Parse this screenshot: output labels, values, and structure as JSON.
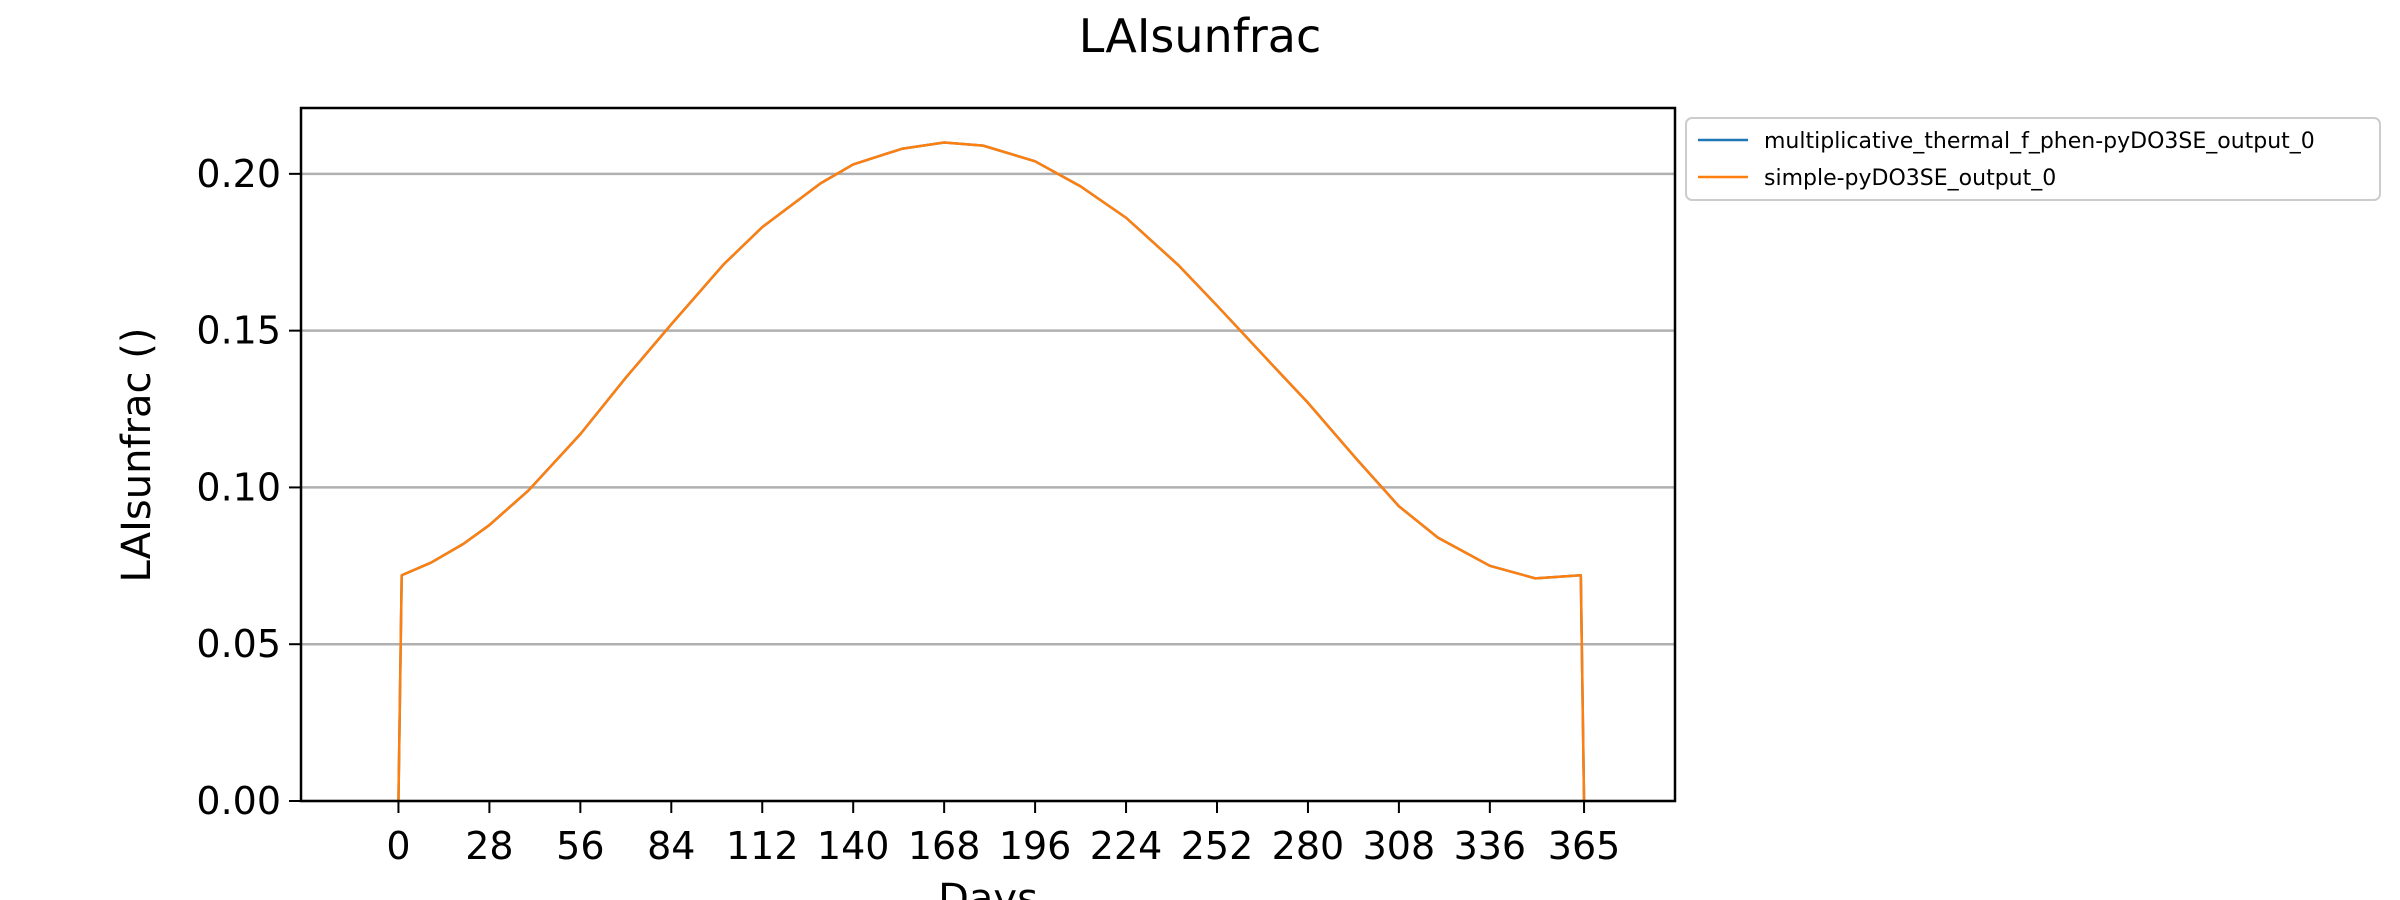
{
  "chart_data": {
    "type": "line",
    "title": "LAIsunfrac",
    "xlabel": "Days",
    "ylabel": "LAIsunfrac ()",
    "xlim": [
      -30,
      393
    ],
    "ylim": [
      0,
      0.221
    ],
    "xticks": [
      0,
      28,
      56,
      84,
      112,
      140,
      168,
      196,
      224,
      252,
      280,
      308,
      336,
      365
    ],
    "yticks": [
      0.0,
      0.05,
      0.1,
      0.15,
      0.2
    ],
    "ytick_labels": [
      "0.00",
      "0.05",
      "0.10",
      "0.15",
      "0.20"
    ],
    "grid": "horizontal",
    "legend_position": "outside-top-right",
    "series": [
      {
        "name": "multiplicative_thermal_f_phen-pyDO3SE_output_0",
        "color": "#1f77b4",
        "x": [
          0,
          1,
          10,
          20,
          28,
          40,
          56,
          70,
          84,
          100,
          112,
          130,
          140,
          155,
          168,
          180,
          196,
          210,
          224,
          240,
          252,
          270,
          280,
          295,
          308,
          320,
          336,
          350,
          364,
          365
        ],
        "y": [
          0.0,
          0.072,
          0.076,
          0.082,
          0.088,
          0.099,
          0.117,
          0.135,
          0.152,
          0.171,
          0.183,
          0.197,
          0.203,
          0.208,
          0.21,
          0.209,
          0.204,
          0.196,
          0.186,
          0.171,
          0.158,
          0.138,
          0.127,
          0.109,
          0.094,
          0.084,
          0.075,
          0.071,
          0.072,
          0.0
        ]
      },
      {
        "name": "simple-pyDO3SE_output_0",
        "color": "#ff7f0e",
        "x": [
          0,
          1,
          10,
          20,
          28,
          40,
          56,
          70,
          84,
          100,
          112,
          130,
          140,
          155,
          168,
          180,
          196,
          210,
          224,
          240,
          252,
          270,
          280,
          295,
          308,
          320,
          336,
          350,
          364,
          365
        ],
        "y": [
          0.0,
          0.072,
          0.076,
          0.082,
          0.088,
          0.099,
          0.117,
          0.135,
          0.152,
          0.171,
          0.183,
          0.197,
          0.203,
          0.208,
          0.21,
          0.209,
          0.204,
          0.196,
          0.186,
          0.171,
          0.158,
          0.138,
          0.127,
          0.109,
          0.094,
          0.084,
          0.075,
          0.071,
          0.072,
          0.0
        ]
      }
    ]
  }
}
